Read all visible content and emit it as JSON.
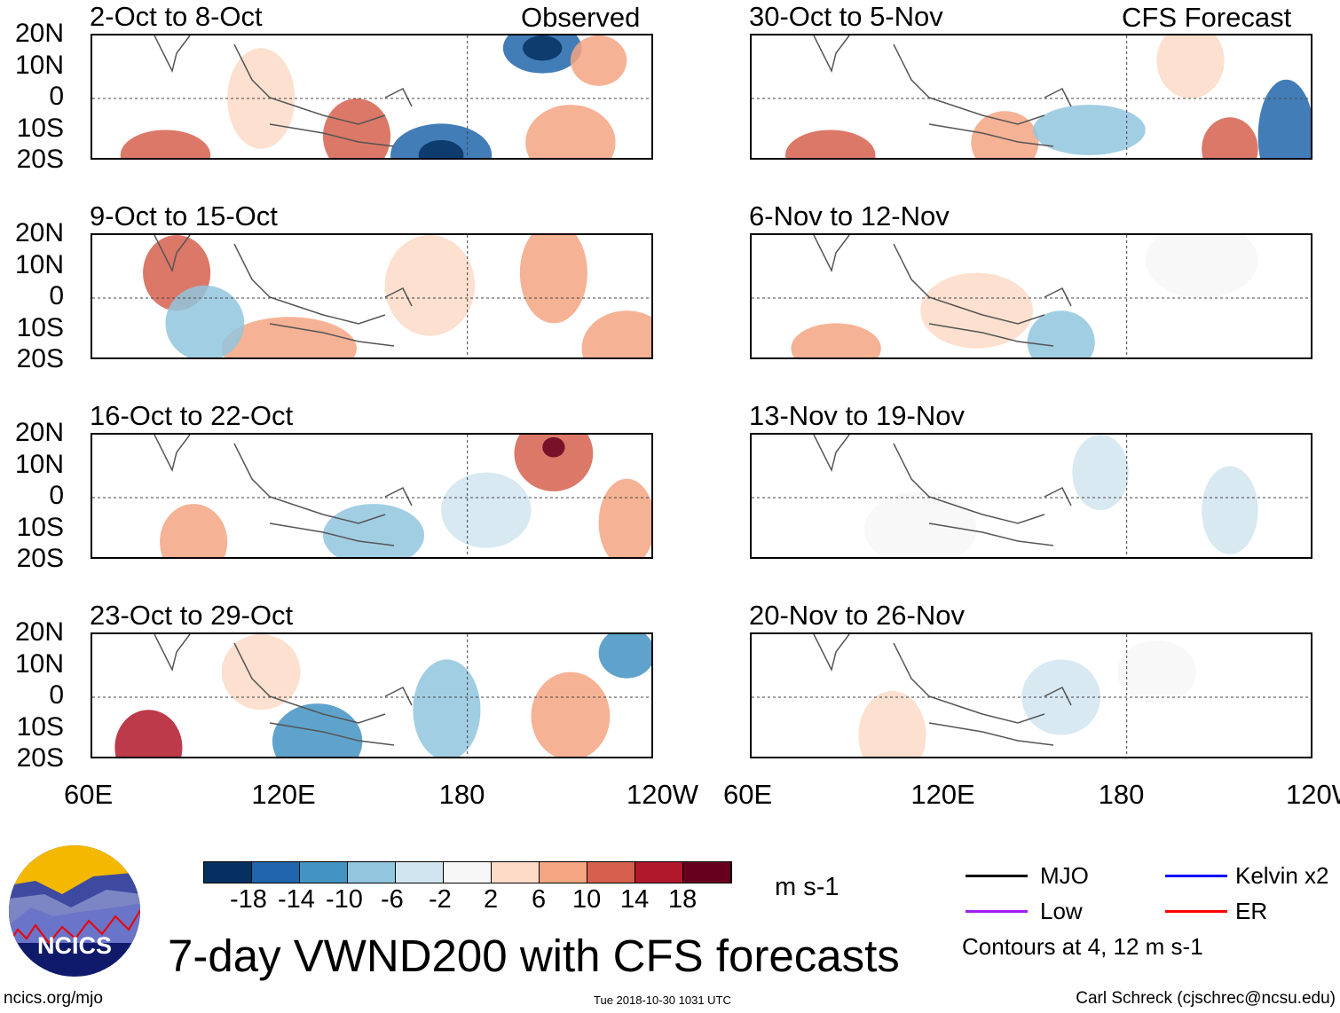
{
  "title": "7-day VWND200 with CFS forecasts",
  "labels": {
    "observed": "Observed",
    "forecast": "CFS Forecast"
  },
  "panels": {
    "observed": [
      "2-Oct to 8-Oct",
      "9-Oct to 15-Oct",
      "16-Oct to 22-Oct",
      "23-Oct to 29-Oct"
    ],
    "forecast": [
      "30-Oct to 5-Nov",
      "6-Nov to 12-Nov",
      "13-Nov to 19-Nov",
      "20-Nov to 26-Nov"
    ]
  },
  "y_ticks": [
    "20N",
    "10N",
    "0",
    "10S",
    "20S"
  ],
  "x_ticks": [
    "60E",
    "120E",
    "180",
    "120W"
  ],
  "colorbar": {
    "ticks": [
      "-18",
      "-14",
      "-10",
      "-6",
      "-2",
      "2",
      "6",
      "10",
      "14",
      "18"
    ],
    "colors": [
      "#053061",
      "#2166ac",
      "#4393c3",
      "#92c5de",
      "#d1e5f0",
      "#f7f7f7",
      "#fddbc7",
      "#f4a582",
      "#d6604d",
      "#b2182b",
      "#67001f"
    ],
    "units": "m s-1"
  },
  "legend": {
    "items": [
      {
        "label": "MJO",
        "color": "#000000"
      },
      {
        "label": "Kelvin x2",
        "color": "#0000ff"
      },
      {
        "label": "Low",
        "color": "#a020f0"
      },
      {
        "label": "ER",
        "color": "#ff0000"
      }
    ],
    "note": "Contours at 4, 12 m s-1"
  },
  "footer": {
    "logo_text": "NCICS",
    "url": "ncics.org/mjo",
    "timestamp": "Tue 2018-10-30 1031 UTC",
    "credit": "Carl Schreck (cjschrec@ncsu.edu)"
  }
}
